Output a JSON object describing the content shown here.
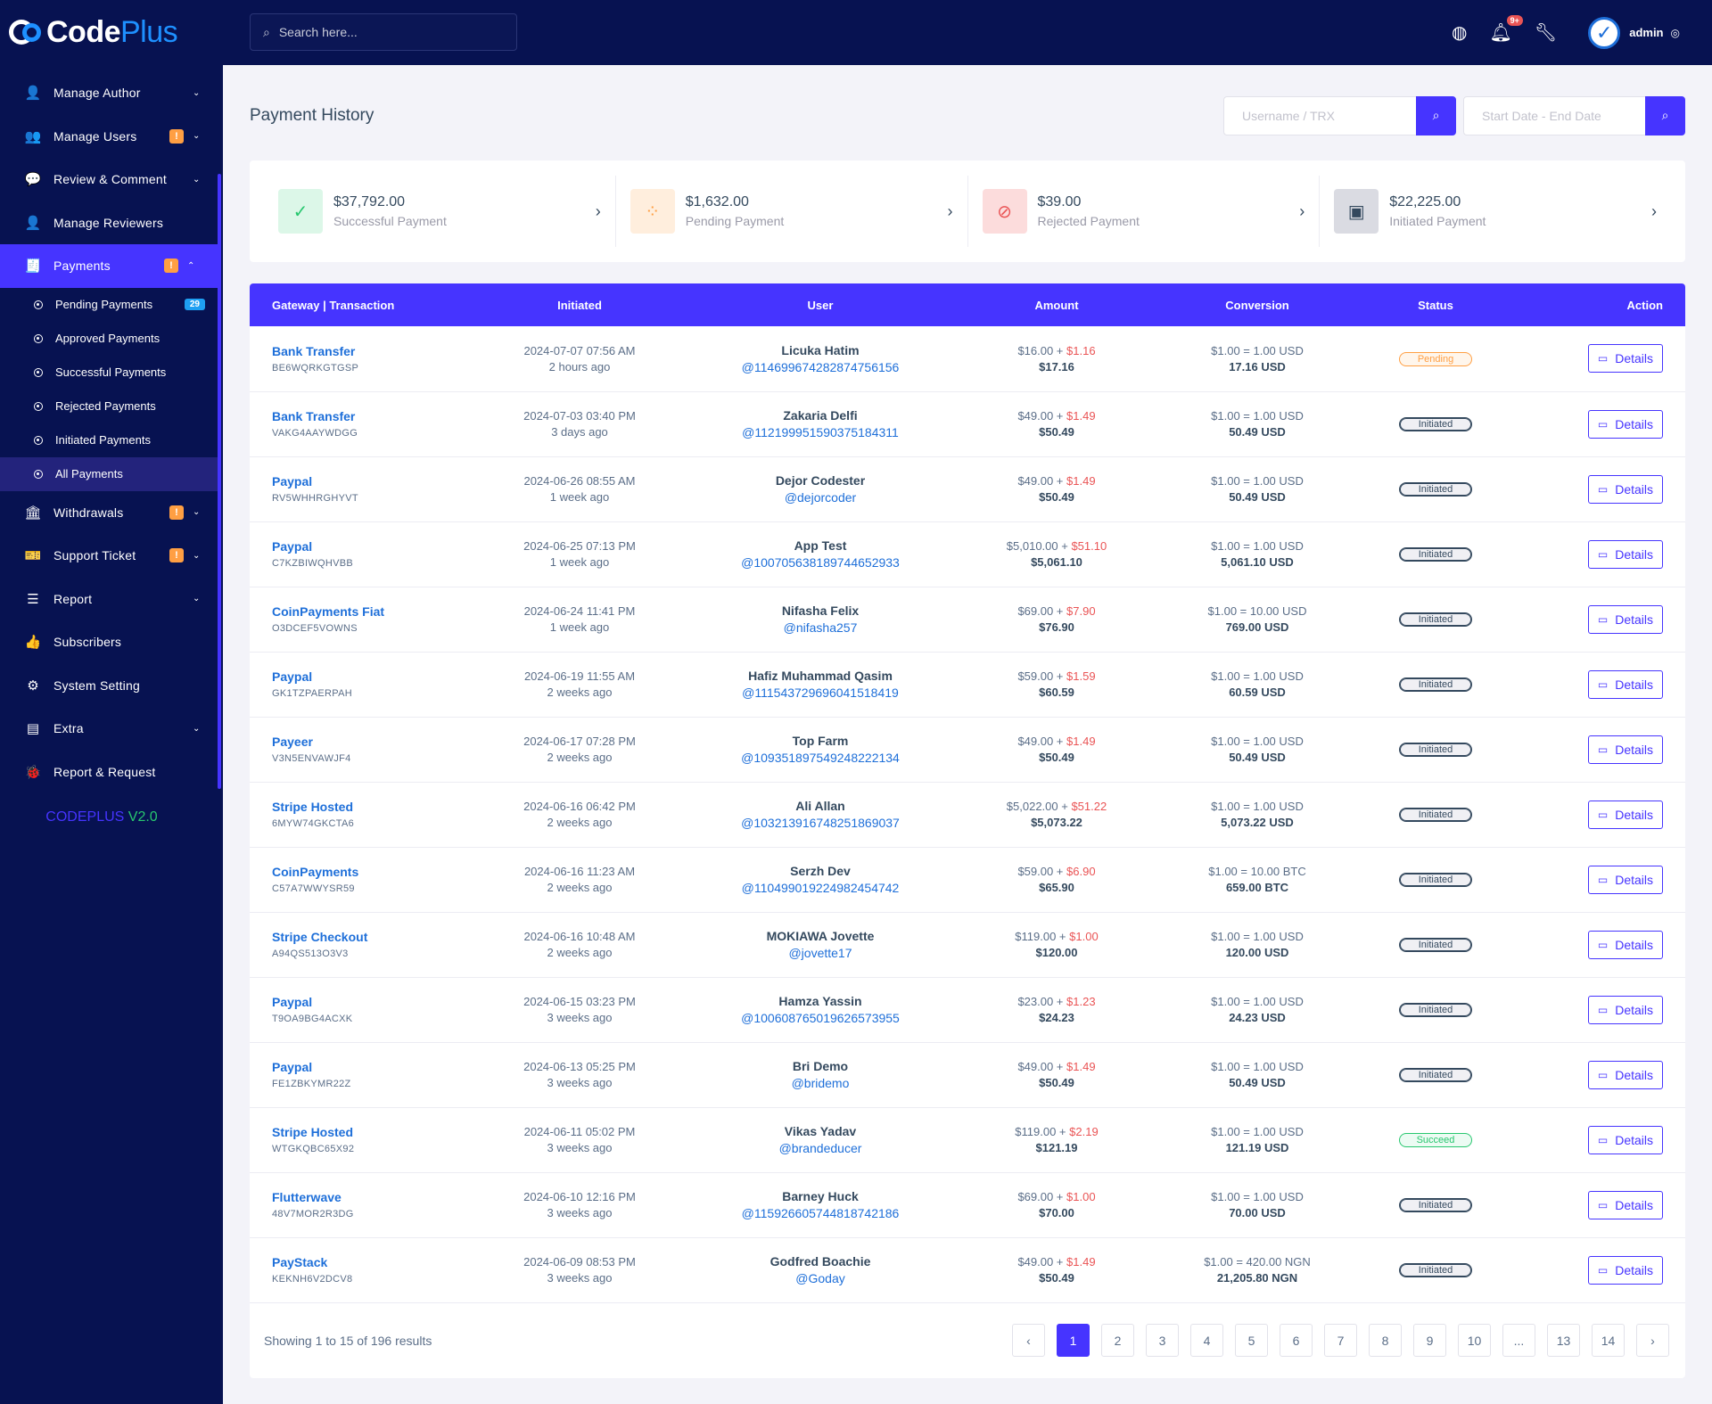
{
  "brand": {
    "part1": "Code",
    "part2": "Plus"
  },
  "sidebar": {
    "items": [
      {
        "key": "manage-author",
        "icon": "👤",
        "label": "Manage Author",
        "badge": "",
        "chevron": "⌄"
      },
      {
        "key": "manage-users",
        "icon": "👥",
        "label": "Manage Users",
        "badge": "!",
        "chevron": "⌄"
      },
      {
        "key": "review-comment",
        "icon": "💬",
        "label": "Review & Comment",
        "badge": "",
        "chevron": "⌄"
      },
      {
        "key": "manage-reviewers",
        "icon": "👤",
        "label": "Manage Reviewers",
        "badge": "",
        "chevron": ""
      }
    ],
    "payments": {
      "icon": "🧾",
      "label": "Payments",
      "badge": "!",
      "chevron": "⌃"
    },
    "payments_sub": [
      {
        "label": "Pending Payments",
        "count": "29"
      },
      {
        "label": "Approved Payments",
        "count": ""
      },
      {
        "label": "Successful Payments",
        "count": ""
      },
      {
        "label": "Rejected Payments",
        "count": ""
      },
      {
        "label": "Initiated Payments",
        "count": ""
      },
      {
        "label": "All Payments",
        "count": ""
      }
    ],
    "items_after": [
      {
        "key": "withdrawals",
        "icon": "🏛",
        "label": "Withdrawals",
        "badge": "!",
        "chevron": "⌄"
      },
      {
        "key": "support-ticket",
        "icon": "🎫",
        "label": "Support Ticket",
        "badge": "!",
        "chevron": "⌄"
      },
      {
        "key": "report",
        "icon": "☰",
        "label": "Report",
        "badge": "",
        "chevron": "⌄"
      },
      {
        "key": "subscribers",
        "icon": "👍",
        "label": "Subscribers",
        "badge": "",
        "chevron": ""
      },
      {
        "key": "system-setting",
        "icon": "⚙",
        "label": "System Setting",
        "badge": "",
        "chevron": ""
      },
      {
        "key": "extra",
        "icon": "▤",
        "label": "Extra",
        "badge": "",
        "chevron": "⌄"
      },
      {
        "key": "report-request",
        "icon": "🐞",
        "label": "Report & Request",
        "badge": "",
        "chevron": ""
      }
    ],
    "version": {
      "name": "CODEPLUS",
      "number": "V2.0"
    }
  },
  "topbar": {
    "search_placeholder": "Search here...",
    "notification_count": "9+",
    "user_name": "admin",
    "avatar_letter": "✓"
  },
  "page": {
    "title": "Payment History",
    "filter1_placeholder": "Username / TRX",
    "filter2_placeholder": "Start Date - End Date"
  },
  "stats": [
    {
      "key": "successful",
      "amount": "$37,792.00",
      "label": "Successful Payment",
      "icon": "✓",
      "icon_color": "#28c76f",
      "bg": "#dcf7e8"
    },
    {
      "key": "pending",
      "amount": "$1,632.00",
      "label": "Pending Payment",
      "icon": "⁘",
      "icon_color": "#ff9f43",
      "bg": "#ffeedd"
    },
    {
      "key": "rejected",
      "amount": "$39.00",
      "label": "Rejected Payment",
      "icon": "⊘",
      "icon_color": "#ea5455",
      "bg": "#fcdcdc"
    },
    {
      "key": "initiated",
      "amount": "$22,225.00",
      "label": "Initiated Payment",
      "icon": "▣",
      "icon_color": "#34495e",
      "bg": "#dadbe2"
    }
  ],
  "table": {
    "headers": [
      "Gateway | Transaction",
      "Initiated",
      "User",
      "Amount",
      "Conversion",
      "Status",
      "Action"
    ],
    "action_label": "Details",
    "rows": [
      {
        "gateway": "Bank Transfer",
        "trx": "BE6WQRKGTGSP",
        "date": "2024-07-07 07:56 AM",
        "ago": "2 hours ago",
        "name": "Licuka Hatim",
        "handle": "@114699674282874756156",
        "amount": "$16.00",
        "charge": "$1.16",
        "total": "$17.16",
        "rate": "$1.00 = 1.00 USD",
        "converted": "17.16 USD",
        "status": "Pending"
      },
      {
        "gateway": "Bank Transfer",
        "trx": "VAKG4AAYWDGG",
        "date": "2024-07-03 03:40 PM",
        "ago": "3 days ago",
        "name": "Zakaria Delfi",
        "handle": "@112199951590375184311",
        "amount": "$49.00",
        "charge": "$1.49",
        "total": "$50.49",
        "rate": "$1.00 = 1.00 USD",
        "converted": "50.49 USD",
        "status": "Initiated"
      },
      {
        "gateway": "Paypal",
        "trx": "RV5WHHRGHYVT",
        "date": "2024-06-26 08:55 AM",
        "ago": "1 week ago",
        "name": "Dejor Codester",
        "handle": "@dejorcoder",
        "amount": "$49.00",
        "charge": "$1.49",
        "total": "$50.49",
        "rate": "$1.00 = 1.00 USD",
        "converted": "50.49 USD",
        "status": "Initiated"
      },
      {
        "gateway": "Paypal",
        "trx": "C7KZBIWQHVBB",
        "date": "2024-06-25 07:13 PM",
        "ago": "1 week ago",
        "name": "App Test",
        "handle": "@100705638189744652933",
        "amount": "$5,010.00",
        "charge": "$51.10",
        "total": "$5,061.10",
        "rate": "$1.00 = 1.00 USD",
        "converted": "5,061.10 USD",
        "status": "Initiated"
      },
      {
        "gateway": "CoinPayments Fiat",
        "trx": "O3DCEF5VOWNS",
        "date": "2024-06-24 11:41 PM",
        "ago": "1 week ago",
        "name": "Nifasha Felix",
        "handle": "@nifasha257",
        "amount": "$69.00",
        "charge": "$7.90",
        "total": "$76.90",
        "rate": "$1.00 = 10.00 USD",
        "converted": "769.00 USD",
        "status": "Initiated"
      },
      {
        "gateway": "Paypal",
        "trx": "GK1TZPAERPAH",
        "date": "2024-06-19 11:55 AM",
        "ago": "2 weeks ago",
        "name": "Hafiz Muhammad Qasim",
        "handle": "@111543729696041518419",
        "amount": "$59.00",
        "charge": "$1.59",
        "total": "$60.59",
        "rate": "$1.00 = 1.00 USD",
        "converted": "60.59 USD",
        "status": "Initiated"
      },
      {
        "gateway": "Payeer",
        "trx": "V3N5ENVAWJF4",
        "date": "2024-06-17 07:28 PM",
        "ago": "2 weeks ago",
        "name": "Top Farm",
        "handle": "@109351897549248222134",
        "amount": "$49.00",
        "charge": "$1.49",
        "total": "$50.49",
        "rate": "$1.00 = 1.00 USD",
        "converted": "50.49 USD",
        "status": "Initiated"
      },
      {
        "gateway": "Stripe Hosted",
        "trx": "6MYW74GKCTA6",
        "date": "2024-06-16 06:42 PM",
        "ago": "2 weeks ago",
        "name": "Ali Allan",
        "handle": "@103213916748251869037",
        "amount": "$5,022.00",
        "charge": "$51.22",
        "total": "$5,073.22",
        "rate": "$1.00 = 1.00 USD",
        "converted": "5,073.22 USD",
        "status": "Initiated"
      },
      {
        "gateway": "CoinPayments",
        "trx": "C57A7WWYSR59",
        "date": "2024-06-16 11:23 AM",
        "ago": "2 weeks ago",
        "name": "Serzh Dev",
        "handle": "@110499019224982454742",
        "amount": "$59.00",
        "charge": "$6.90",
        "total": "$65.90",
        "rate": "$1.00 = 10.00 BTC",
        "converted": "659.00 BTC",
        "status": "Initiated"
      },
      {
        "gateway": "Stripe Checkout",
        "trx": "A94QS513O3V3",
        "date": "2024-06-16 10:48 AM",
        "ago": "2 weeks ago",
        "name": "MOKIAWA Jovette",
        "handle": "@jovette17",
        "amount": "$119.00",
        "charge": "$1.00",
        "total": "$120.00",
        "rate": "$1.00 = 1.00 USD",
        "converted": "120.00 USD",
        "status": "Initiated"
      },
      {
        "gateway": "Paypal",
        "trx": "T9OA9BG4ACXK",
        "date": "2024-06-15 03:23 PM",
        "ago": "3 weeks ago",
        "name": "Hamza Yassin",
        "handle": "@100608765019626573955",
        "amount": "$23.00",
        "charge": "$1.23",
        "total": "$24.23",
        "rate": "$1.00 = 1.00 USD",
        "converted": "24.23 USD",
        "status": "Initiated"
      },
      {
        "gateway": "Paypal",
        "trx": "FE1ZBKYMR22Z",
        "date": "2024-06-13 05:25 PM",
        "ago": "3 weeks ago",
        "name": "Bri Demo",
        "handle": "@bridemo",
        "amount": "$49.00",
        "charge": "$1.49",
        "total": "$50.49",
        "rate": "$1.00 = 1.00 USD",
        "converted": "50.49 USD",
        "status": "Initiated"
      },
      {
        "gateway": "Stripe Hosted",
        "trx": "WTGKQBC65X92",
        "date": "2024-06-11 05:02 PM",
        "ago": "3 weeks ago",
        "name": "Vikas Yadav",
        "handle": "@brandeducer",
        "amount": "$119.00",
        "charge": "$2.19",
        "total": "$121.19",
        "rate": "$1.00 = 1.00 USD",
        "converted": "121.19 USD",
        "status": "Succeed"
      },
      {
        "gateway": "Flutterwave",
        "trx": "48V7MOR2R3DG",
        "date": "2024-06-10 12:16 PM",
        "ago": "3 weeks ago",
        "name": "Barney Huck",
        "handle": "@115926605744818742186",
        "amount": "$69.00",
        "charge": "$1.00",
        "total": "$70.00",
        "rate": "$1.00 = 1.00 USD",
        "converted": "70.00 USD",
        "status": "Initiated"
      },
      {
        "gateway": "PayStack",
        "trx": "KEKNH6V2DCV8",
        "date": "2024-06-09 08:53 PM",
        "ago": "3 weeks ago",
        "name": "Godfred Boachie",
        "handle": "@Goday",
        "amount": "$49.00",
        "charge": "$1.49",
        "total": "$50.49",
        "rate": "$1.00 = 420.00 NGN",
        "converted": "21,205.80 NGN",
        "status": "Initiated"
      }
    ]
  },
  "footer": {
    "showing": "Showing 1 to 15 of 196 results",
    "pages": [
      "‹",
      "1",
      "2",
      "3",
      "4",
      "5",
      "6",
      "7",
      "8",
      "9",
      "10",
      "...",
      "13",
      "14",
      "›"
    ],
    "active_page": "1"
  }
}
